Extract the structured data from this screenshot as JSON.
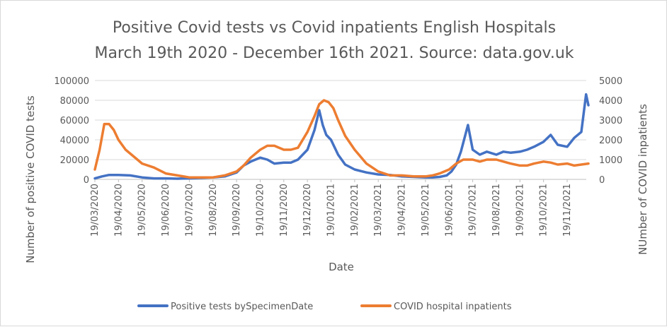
{
  "chart_data": {
    "type": "line",
    "title": "Positive Covid tests vs Covid inpatients English Hospitals",
    "subtitle": "March 19th 2020 - December  16th 2021. Source: data.gov.uk",
    "xlabel": "Date",
    "ylabel_left": "Number of positive COVID tests",
    "ylabel_right": "NUmber of COVID inpatients",
    "ylim_left": [
      0,
      100000
    ],
    "ylim_right": [
      0,
      5000
    ],
    "yticks_left": [
      "0",
      "20000",
      "40000",
      "60000",
      "80000",
      "100000"
    ],
    "yticks_right": [
      "0",
      "1000",
      "2000",
      "3000",
      "4000",
      "5000"
    ],
    "x_ticks": [
      "19/03/2020",
      "19/04/2020",
      "19/05/2020",
      "19/06/2020",
      "19/07/2020",
      "19/08/2020",
      "19/09/2020",
      "19/10/2020",
      "19/11/2020",
      "19/12/2020",
      "19/01/2021",
      "19/02/2021",
      "19/03/2021",
      "19/04/2021",
      "19/05/2021",
      "19/06/2021",
      "19/07/2021",
      "19/08/2021",
      "19/09/2021",
      "19/10/2021",
      "19/11/2021"
    ],
    "grid": true,
    "legend_position": "bottom",
    "series": [
      {
        "name": "Positive tests bySpecimenDate",
        "color": "#4472c4",
        "axis": "left",
        "month_index": [
          0,
          0.3,
          0.6,
          1,
          1.5,
          2,
          2.5,
          3,
          3.5,
          4,
          4.5,
          5,
          5.5,
          6,
          6.3,
          6.6,
          7,
          7.3,
          7.6,
          8,
          8.3,
          8.6,
          9,
          9.3,
          9.5,
          9.65,
          9.8,
          10,
          10.3,
          10.6,
          11,
          11.5,
          12,
          12.5,
          13,
          13.5,
          14,
          14.3,
          14.6,
          14.9,
          15.1,
          15.3,
          15.5,
          15.8,
          16,
          16.3,
          16.6,
          17,
          17.3,
          17.6,
          18,
          18.3,
          18.6,
          19,
          19.3,
          19.6,
          20,
          20.3,
          20.6,
          20.8,
          20.9
        ],
        "values": [
          1000,
          3000,
          4500,
          4500,
          4000,
          2000,
          1000,
          1000,
          700,
          1000,
          1500,
          2000,
          3000,
          7000,
          14000,
          18000,
          22000,
          20000,
          16000,
          17000,
          17000,
          20000,
          30000,
          50000,
          70000,
          55000,
          45000,
          40000,
          25000,
          15000,
          10000,
          7000,
          5000,
          4500,
          3000,
          2500,
          2000,
          2000,
          2500,
          4000,
          8000,
          15000,
          28000,
          55000,
          30000,
          25000,
          28000,
          25000,
          28000,
          27000,
          28000,
          30000,
          33000,
          38000,
          45000,
          35000,
          33000,
          42000,
          48000,
          86000,
          75000
        ]
      },
      {
        "name": "COVID hospital inpatients",
        "color": "#ed7d31",
        "axis": "right",
        "month_index": [
          0,
          0.2,
          0.4,
          0.6,
          0.8,
          1,
          1.3,
          1.6,
          2,
          2.5,
          3,
          3.5,
          4,
          4.5,
          5,
          5.5,
          6,
          6.3,
          6.6,
          7,
          7.3,
          7.6,
          8,
          8.3,
          8.6,
          9,
          9.3,
          9.5,
          9.7,
          9.9,
          10.1,
          10.3,
          10.6,
          11,
          11.5,
          12,
          12.5,
          13,
          13.5,
          14,
          14.3,
          14.6,
          15,
          15.3,
          15.6,
          16,
          16.3,
          16.6,
          17,
          17.3,
          17.6,
          18,
          18.3,
          18.6,
          19,
          19.3,
          19.6,
          20,
          20.3,
          20.6,
          20.9
        ],
        "values": [
          500,
          1500,
          2800,
          2800,
          2500,
          2000,
          1500,
          1200,
          800,
          600,
          300,
          200,
          100,
          100,
          100,
          200,
          400,
          700,
          1100,
          1500,
          1700,
          1700,
          1500,
          1500,
          1600,
          2400,
          3200,
          3800,
          4000,
          3900,
          3600,
          3000,
          2200,
          1500,
          800,
          400,
          200,
          200,
          150,
          150,
          200,
          300,
          500,
          800,
          1000,
          1000,
          900,
          1000,
          1000,
          900,
          800,
          700,
          700,
          800,
          900,
          850,
          750,
          800,
          700,
          750,
          800
        ]
      }
    ]
  }
}
